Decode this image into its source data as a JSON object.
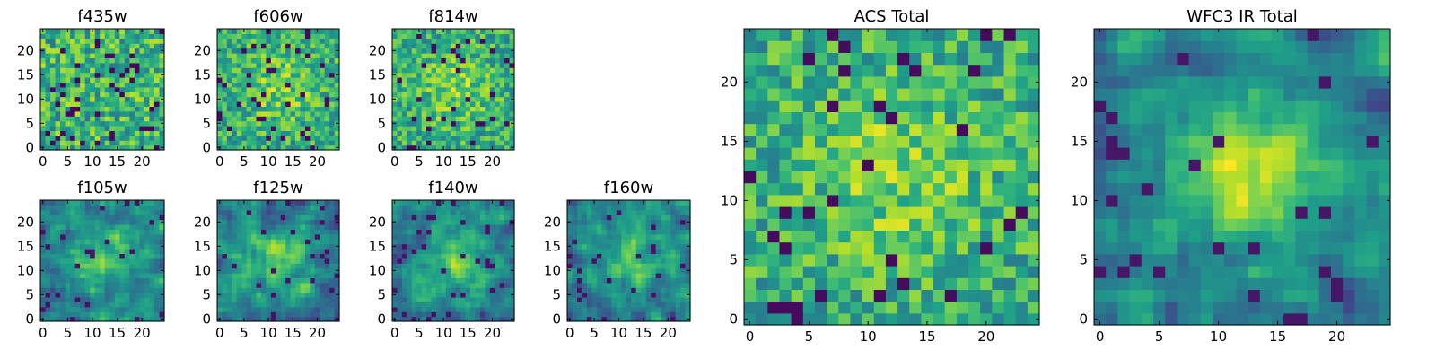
{
  "figure": {
    "colormap": "viridis",
    "colormap_stops": [
      "#440154",
      "#482878",
      "#3e4a89",
      "#31688e",
      "#26828e",
      "#1f9e89",
      "#35b779",
      "#6ece58",
      "#b5de2b",
      "#fde725"
    ]
  },
  "chart_data": [
    {
      "id": "f435w",
      "type": "heatmap",
      "title": "f435w",
      "grid_size": [
        25,
        25
      ],
      "xticks": [
        0,
        5,
        10,
        15,
        20
      ],
      "yticks": [
        0,
        5,
        10,
        15,
        20
      ],
      "xlim": [
        -0.5,
        24.5
      ],
      "ylim": [
        -0.5,
        24.5
      ],
      "pattern": "noise",
      "seed": 11
    },
    {
      "id": "f606w",
      "type": "heatmap",
      "title": "f606w",
      "grid_size": [
        25,
        25
      ],
      "xticks": [
        0,
        5,
        10,
        15,
        20
      ],
      "yticks": [
        0,
        5,
        10,
        15,
        20
      ],
      "xlim": [
        -0.5,
        24.5
      ],
      "ylim": [
        -0.5,
        24.5
      ],
      "pattern": "noise-faint-source",
      "seed": 23
    },
    {
      "id": "f814w",
      "type": "heatmap",
      "title": "f814w",
      "grid_size": [
        25,
        25
      ],
      "xticks": [
        0,
        5,
        10,
        15,
        20
      ],
      "yticks": [
        0,
        5,
        10,
        15,
        20
      ],
      "xlim": [
        -0.5,
        24.5
      ],
      "ylim": [
        -0.5,
        24.5
      ],
      "pattern": "noise-faint-source",
      "seed": 37
    },
    {
      "id": "f105w",
      "type": "heatmap",
      "title": "f105w",
      "grid_size": [
        25,
        25
      ],
      "xticks": [
        0,
        5,
        10,
        15,
        20
      ],
      "yticks": [
        0,
        5,
        10,
        15,
        20
      ],
      "xlim": [
        -0.5,
        24.5
      ],
      "ylim": [
        -0.5,
        24.5
      ],
      "pattern": "smooth-source",
      "seed": 41
    },
    {
      "id": "f125w",
      "type": "heatmap",
      "title": "f125w",
      "grid_size": [
        25,
        25
      ],
      "xticks": [
        0,
        5,
        10,
        15,
        20
      ],
      "yticks": [
        0,
        5,
        10,
        15,
        20
      ],
      "xlim": [
        -0.5,
        24.5
      ],
      "ylim": [
        -0.5,
        24.5
      ],
      "pattern": "smooth-source",
      "seed": 53
    },
    {
      "id": "f140w",
      "type": "heatmap",
      "title": "f140w",
      "grid_size": [
        25,
        25
      ],
      "xticks": [
        0,
        5,
        10,
        15,
        20
      ],
      "yticks": [
        0,
        5,
        10,
        15,
        20
      ],
      "xlim": [
        -0.5,
        24.5
      ],
      "ylim": [
        -0.5,
        24.5
      ],
      "pattern": "smooth-source",
      "seed": 67
    },
    {
      "id": "f160w",
      "type": "heatmap",
      "title": "f160w",
      "grid_size": [
        25,
        25
      ],
      "xticks": [
        0,
        5,
        10,
        15,
        20
      ],
      "yticks": [
        0,
        5,
        10,
        15,
        20
      ],
      "xlim": [
        -0.5,
        24.5
      ],
      "ylim": [
        -0.5,
        24.5
      ],
      "pattern": "smooth-source",
      "seed": 79
    },
    {
      "id": "acs-total",
      "type": "heatmap",
      "title": "ACS Total",
      "grid_size": [
        25,
        25
      ],
      "xticks": [
        0,
        5,
        10,
        15,
        20
      ],
      "yticks": [
        0,
        5,
        10,
        15,
        20
      ],
      "xlim": [
        -0.5,
        24.5
      ],
      "ylim": [
        -0.5,
        24.5
      ],
      "pattern": "noise-faint-source",
      "seed": 97
    },
    {
      "id": "wfc3-ir-total",
      "type": "heatmap",
      "title": "WFC3 IR Total",
      "grid_size": [
        25,
        25
      ],
      "xticks": [
        0,
        5,
        10,
        15,
        20
      ],
      "yticks": [
        0,
        5,
        10,
        15,
        20
      ],
      "xlim": [
        -0.5,
        24.5
      ],
      "ylim": [
        -0.5,
        24.5
      ],
      "pattern": "strong-source",
      "seed": 113
    }
  ]
}
